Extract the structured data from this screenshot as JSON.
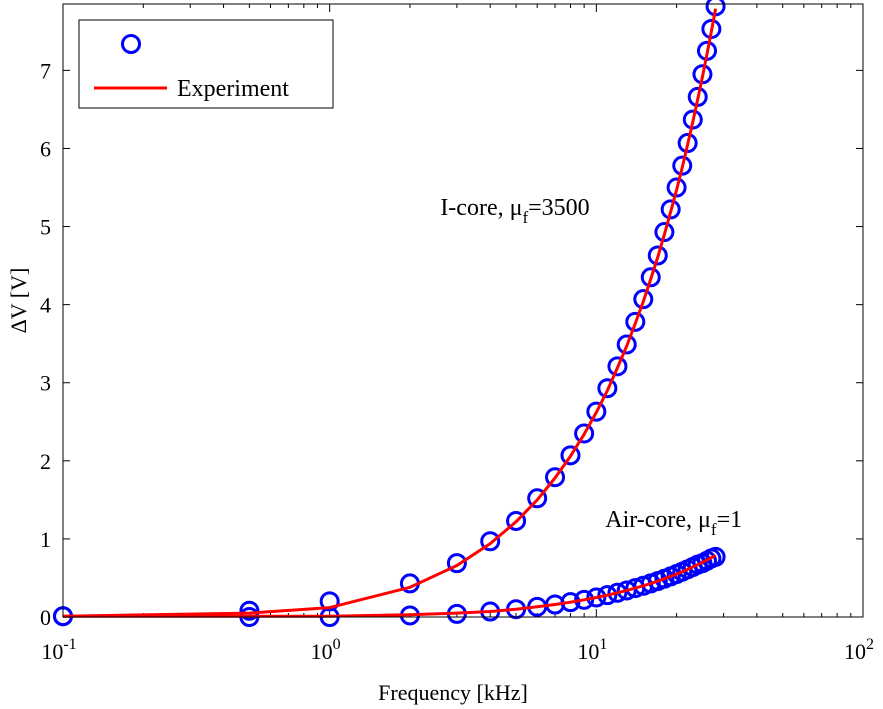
{
  "chart_data": {
    "type": "line",
    "xlabel": "Frequency [kHz]",
    "ylabel": "ΔV [V]",
    "xscale": "log",
    "xlim": [
      0.1,
      100
    ],
    "ylim": [
      0,
      7.85
    ],
    "xticks": [
      {
        "value": 0.1,
        "base": "10",
        "exp": "-1"
      },
      {
        "value": 1,
        "base": "10",
        "exp": "0"
      },
      {
        "value": 10,
        "base": "10",
        "exp": "1"
      },
      {
        "value": 100,
        "base": "10",
        "exp": "2"
      }
    ],
    "yticks": [
      0,
      1,
      2,
      3,
      4,
      5,
      6,
      7
    ],
    "legend": {
      "placement": "top-left",
      "entries": [
        {
          "label": "",
          "marker": "circle",
          "color": "#0000ff"
        },
        {
          "label": "Experiment",
          "marker": "line",
          "color": "#ff0000"
        }
      ]
    },
    "annotations": [
      {
        "text_main": "I-core,",
        "mu": "μ",
        "sub": "f",
        "value": "=3500",
        "x": 2.6,
        "y": 5.15
      },
      {
        "text_main": "Air-core,",
        "mu": "μ",
        "sub": "f",
        "value": "=1",
        "x": 10.8,
        "y": 1.15
      }
    ],
    "series": [
      {
        "name": "",
        "kind": "markers",
        "color": "#0000ff",
        "x": [
          0.1,
          0.5,
          1,
          2,
          3,
          4,
          5,
          6,
          7,
          8,
          9,
          10,
          11,
          12,
          13,
          14,
          15,
          16,
          17,
          18,
          19,
          20,
          21,
          22,
          23,
          24,
          25,
          26,
          27,
          28
        ],
        "y": [
          0.01,
          0.08,
          0.2,
          0.43,
          0.69,
          0.97,
          1.23,
          1.52,
          1.79,
          2.07,
          2.35,
          2.63,
          2.93,
          3.21,
          3.49,
          3.78,
          4.07,
          4.35,
          4.63,
          4.93,
          5.22,
          5.5,
          5.78,
          6.07,
          6.37,
          6.66,
          6.95,
          7.25,
          7.53,
          7.82
        ]
      },
      {
        "name": "",
        "kind": "markers",
        "color": "#0000ff",
        "x": [
          0.1,
          0.5,
          1,
          2,
          3,
          4,
          5,
          6,
          7,
          8,
          9,
          10,
          11,
          12,
          13,
          14,
          15,
          16,
          17,
          18,
          19,
          20,
          21,
          22,
          23,
          24,
          25,
          26,
          27,
          28
        ],
        "y": [
          0.01,
          0.0,
          0.0,
          0.02,
          0.04,
          0.07,
          0.1,
          0.13,
          0.16,
          0.19,
          0.22,
          0.25,
          0.28,
          0.31,
          0.34,
          0.37,
          0.4,
          0.43,
          0.46,
          0.49,
          0.52,
          0.55,
          0.58,
          0.61,
          0.64,
          0.67,
          0.69,
          0.72,
          0.75,
          0.77
        ]
      },
      {
        "name": "Experiment",
        "kind": "line",
        "color": "#ff0000",
        "x": [
          0.1,
          0.5,
          1,
          2,
          3,
          4,
          5,
          6,
          7,
          8,
          9,
          10,
          11,
          12,
          13,
          14,
          15,
          16,
          17,
          18,
          19,
          20,
          21,
          22,
          23,
          24,
          25,
          26,
          27,
          28
        ],
        "y": [
          0.01,
          0.05,
          0.12,
          0.38,
          0.66,
          0.94,
          1.22,
          1.5,
          1.78,
          2.06,
          2.34,
          2.62,
          2.9,
          3.19,
          3.47,
          3.76,
          4.04,
          4.33,
          4.61,
          4.9,
          5.19,
          5.47,
          5.76,
          6.05,
          6.34,
          6.63,
          6.92,
          7.21,
          7.5,
          7.79
        ]
      },
      {
        "name": "",
        "kind": "line",
        "color": "#ff0000",
        "x": [
          0.1,
          0.5,
          1,
          2,
          3,
          4,
          5,
          6,
          7,
          8,
          9,
          10,
          11,
          12,
          13,
          14,
          15,
          16,
          17,
          18,
          19,
          20,
          21,
          22,
          23,
          24,
          25,
          26,
          27,
          28
        ],
        "y": [
          0.01,
          0.01,
          0.01,
          0.03,
          0.05,
          0.07,
          0.1,
          0.13,
          0.16,
          0.19,
          0.22,
          0.25,
          0.28,
          0.31,
          0.34,
          0.37,
          0.4,
          0.43,
          0.46,
          0.49,
          0.52,
          0.55,
          0.58,
          0.61,
          0.64,
          0.67,
          0.7,
          0.73,
          0.76,
          0.79
        ]
      }
    ]
  }
}
